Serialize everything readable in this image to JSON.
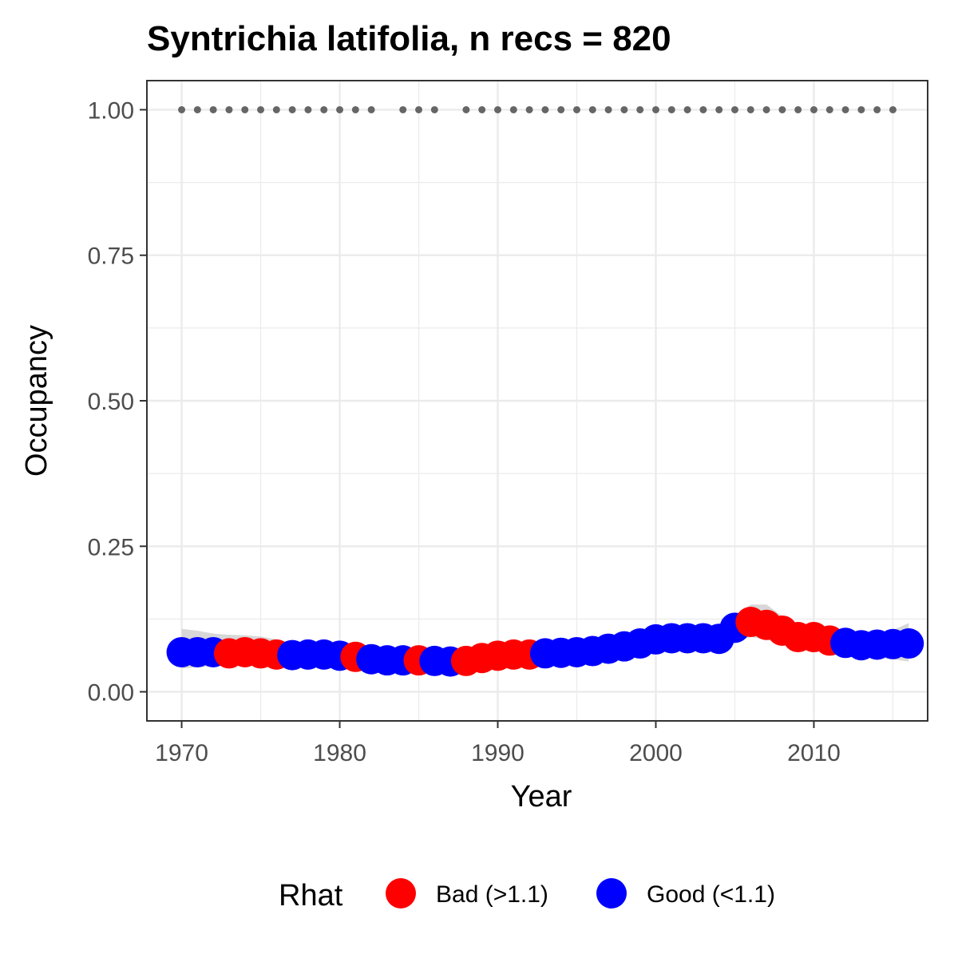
{
  "chart_data": {
    "type": "scatter",
    "title": "Syntrichia latifolia, n recs = 820",
    "xlabel": "Year",
    "ylabel": "Occupancy",
    "xlim": [
      1967.8,
      2017.2
    ],
    "ylim": [
      -0.05,
      1.05
    ],
    "x_ticks": [
      1970,
      1980,
      1990,
      2000,
      2010
    ],
    "x_tick_labels": [
      "1970",
      "1980",
      "1990",
      "2000",
      "2010"
    ],
    "y_ticks": [
      0,
      0.25,
      0.5,
      0.75,
      1.0
    ],
    "y_tick_labels": [
      "0.00",
      "0.25",
      "0.50",
      "0.75",
      "1.00"
    ],
    "grid": true,
    "legend": {
      "title": "Rhat",
      "position": "bottom",
      "entries": [
        {
          "label": "Bad (>1.1)",
          "color": "#ff0000"
        },
        {
          "label": "Good (<1.1)",
          "color": "#0000ff"
        }
      ]
    },
    "colors": {
      "bad": "#ff0000",
      "good": "#0000ff",
      "records": "#666666",
      "ribbon": "#d3d3d3"
    },
    "occupancy": {
      "x": [
        1970,
        1971,
        1972,
        1973,
        1974,
        1975,
        1976,
        1977,
        1978,
        1979,
        1980,
        1981,
        1982,
        1983,
        1984,
        1985,
        1986,
        1987,
        1988,
        1989,
        1990,
        1991,
        1992,
        1993,
        1994,
        1995,
        1996,
        1997,
        1998,
        1999,
        2000,
        2001,
        2002,
        2003,
        2004,
        2005,
        2006,
        2007,
        2008,
        2009,
        2010,
        2011,
        2012,
        2013,
        2014,
        2015,
        2016
      ],
      "y": [
        0.068,
        0.068,
        0.068,
        0.066,
        0.068,
        0.066,
        0.064,
        0.063,
        0.064,
        0.064,
        0.062,
        0.06,
        0.056,
        0.054,
        0.054,
        0.054,
        0.053,
        0.052,
        0.053,
        0.058,
        0.062,
        0.064,
        0.064,
        0.066,
        0.067,
        0.068,
        0.07,
        0.074,
        0.078,
        0.083,
        0.09,
        0.092,
        0.092,
        0.092,
        0.091,
        0.11,
        0.12,
        0.115,
        0.105,
        0.094,
        0.094,
        0.088,
        0.084,
        0.08,
        0.081,
        0.082,
        0.083
      ],
      "rhat": [
        "Good",
        "Good",
        "Good",
        "Bad",
        "Bad",
        "Bad",
        "Bad",
        "Good",
        "Good",
        "Good",
        "Good",
        "Bad",
        "Good",
        "Good",
        "Good",
        "Bad",
        "Good",
        "Good",
        "Bad",
        "Bad",
        "Bad",
        "Bad",
        "Bad",
        "Good",
        "Good",
        "Good",
        "Good",
        "Good",
        "Good",
        "Good",
        "Good",
        "Good",
        "Good",
        "Good",
        "Good",
        "Good",
        "Bad",
        "Bad",
        "Bad",
        "Bad",
        "Bad",
        "Bad",
        "Good",
        "Good",
        "Good",
        "Good",
        "Good"
      ],
      "ribbon_upper": [
        0.108,
        0.105,
        0.1,
        0.098,
        0.097,
        0.095,
        0.09,
        0.085,
        0.084,
        0.082,
        0.078,
        0.074,
        0.07,
        0.068,
        0.067,
        0.067,
        0.066,
        0.066,
        0.067,
        0.072,
        0.076,
        0.078,
        0.078,
        0.08,
        0.081,
        0.082,
        0.084,
        0.088,
        0.092,
        0.097,
        0.104,
        0.106,
        0.106,
        0.106,
        0.106,
        0.128,
        0.15,
        0.15,
        0.13,
        0.112,
        0.11,
        0.104,
        0.1,
        0.098,
        0.1,
        0.106,
        0.118
      ],
      "ribbon_lower": [
        0.04,
        0.042,
        0.044,
        0.045,
        0.046,
        0.046,
        0.045,
        0.044,
        0.044,
        0.044,
        0.043,
        0.042,
        0.04,
        0.039,
        0.039,
        0.039,
        0.039,
        0.038,
        0.039,
        0.043,
        0.046,
        0.048,
        0.049,
        0.05,
        0.051,
        0.052,
        0.054,
        0.057,
        0.06,
        0.064,
        0.07,
        0.072,
        0.073,
        0.073,
        0.073,
        0.086,
        0.094,
        0.09,
        0.082,
        0.074,
        0.073,
        0.068,
        0.064,
        0.06,
        0.058,
        0.056,
        0.052
      ]
    },
    "records": {
      "y": 1.0,
      "x": [
        1970,
        1971,
        1972,
        1973,
        1974,
        1975,
        1976,
        1977,
        1978,
        1979,
        1980,
        1981,
        1982,
        1984,
        1985,
        1986,
        1988,
        1989,
        1990,
        1991,
        1992,
        1993,
        1994,
        1995,
        1996,
        1997,
        1998,
        1999,
        2000,
        2001,
        2002,
        2003,
        2004,
        2005,
        2006,
        2007,
        2008,
        2009,
        2010,
        2011,
        2012,
        2013,
        2014,
        2015
      ]
    }
  }
}
